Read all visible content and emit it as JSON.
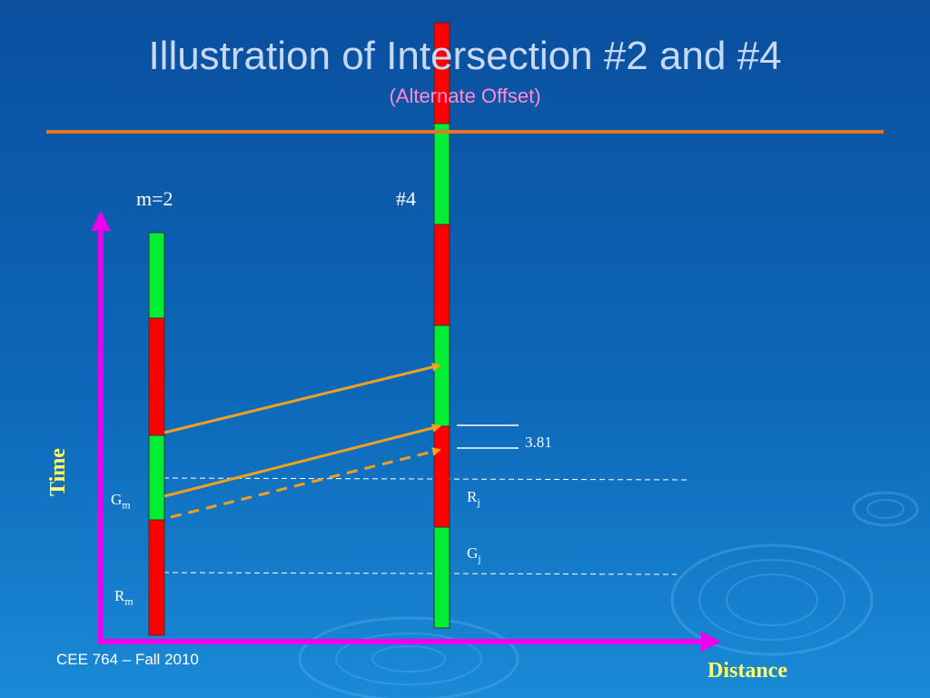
{
  "slide": {
    "title": "Illustration of Intersection #2 and #4",
    "subtitle": "(Alternate Offset)",
    "footer": "CEE 764 – Fall 2010"
  },
  "labels": {
    "intersection_m": "m=2",
    "intersection_4": "#4",
    "value": "3.81",
    "g_m": "G",
    "g_m_sub": "m",
    "r_m": "R",
    "r_m_sub": "m",
    "r_j": "R",
    "r_j_sub": "j",
    "g_j": "G",
    "g_j_sub": "j",
    "y_axis": "Time",
    "x_axis": "Distance"
  },
  "colors": {
    "background_top": "#0a4f9e",
    "accent_rule": "#e0762a",
    "green": "#00ee33",
    "red": "#ff0000",
    "axis": "#ee00ee",
    "arrow": "#f0a020",
    "axis_label": "#ffff66",
    "subtitle": "#ff8ad8"
  }
}
